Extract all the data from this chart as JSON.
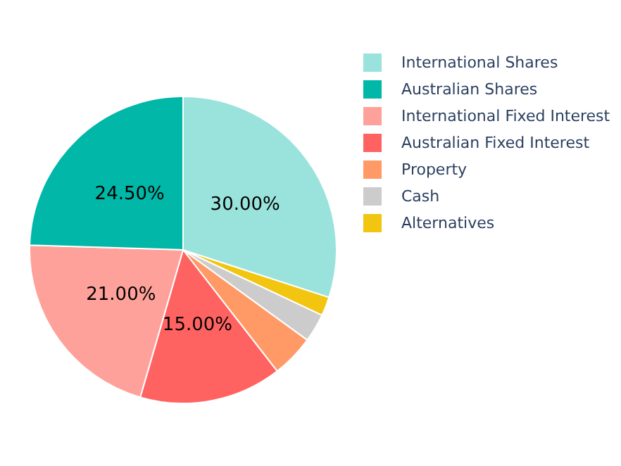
{
  "chart_data": {
    "type": "pie",
    "categories": [
      "International Shares",
      "Australian Shares",
      "International Fixed Interest",
      "Australian Fixed Interest",
      "Property",
      "Cash",
      "Alternatives"
    ],
    "values": [
      30,
      24.5,
      21,
      15,
      4.5,
      3,
      2
    ],
    "colors": [
      "#9ae3dc",
      "#00b7a8",
      "#ffa19b",
      "#ff6361",
      "#ff9a66",
      "#cccccc",
      "#f2c511"
    ],
    "value_labels": [
      "30.00%",
      "24.50%",
      "21.00%",
      "15.00%",
      null,
      null,
      null
    ],
    "legend": "right"
  }
}
